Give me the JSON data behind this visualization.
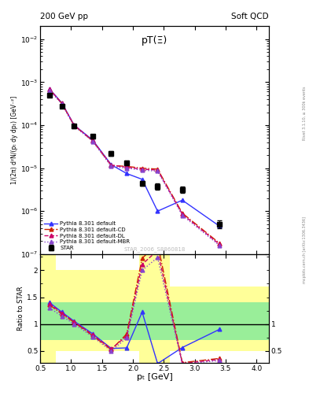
{
  "title_left": "200 GeV pp",
  "title_right": "Soft QCD",
  "annotation": "pT(Ξ)",
  "watermark": "STAR_2006_S8860818",
  "ylabel_main": "1/(2π) d²N/(pₜ dy dpₜ) [GeV⁻²]",
  "ylabel_ratio": "Ratio to STAR",
  "xlabel": "pₜ [GeV]",
  "right_label": "Rivet 3.1.10, ≥ 300k events",
  "right_label2": "mcplots.cern.ch [arXiv:1306.3436]",
  "star_pt": [
    0.65,
    0.85,
    1.05,
    1.35,
    1.65,
    1.9,
    2.15,
    2.4,
    2.8,
    3.4
  ],
  "star_y": [
    0.0005,
    0.00027,
    9.5e-05,
    5.5e-05,
    2.2e-05,
    1.35e-05,
    4.5e-06,
    3.8e-06,
    3.2e-06,
    5e-07
  ],
  "star_yerr": [
    5e-05,
    2e-05,
    1e-05,
    6e-06,
    3e-06,
    1.5e-06,
    6e-07,
    6e-07,
    5e-07,
    1e-07
  ],
  "py_default_pt": [
    0.65,
    0.85,
    1.05,
    1.35,
    1.65,
    1.9,
    2.15,
    2.4,
    2.8,
    3.4
  ],
  "py_default_y": [
    0.0007,
    0.00033,
    0.0001,
    4.5e-05,
    1.2e-05,
    7.5e-06,
    5.5e-06,
    1e-06,
    1.8e-06,
    4.5e-07
  ],
  "py_cd_pt": [
    0.65,
    0.85,
    1.05,
    1.35,
    1.65,
    1.9,
    2.15,
    2.4,
    2.8,
    3.4
  ],
  "py_cd_y": [
    0.00068,
    0.00032,
    9.8e-05,
    4.3e-05,
    1.15e-05,
    1.1e-05,
    1e-05,
    9.5e-06,
    9e-07,
    1.8e-07
  ],
  "py_dl_pt": [
    0.65,
    0.85,
    1.05,
    1.35,
    1.65,
    1.9,
    2.15,
    2.4,
    2.8,
    3.4
  ],
  "py_dl_y": [
    0.00069,
    0.000325,
    9.9e-05,
    4.4e-05,
    1.18e-05,
    1.05e-05,
    9.5e-06,
    9e-06,
    8.5e-07,
    1.7e-07
  ],
  "py_mbr_pt": [
    0.65,
    0.85,
    1.05,
    1.35,
    1.65,
    1.9,
    2.15,
    2.4,
    2.8,
    3.4
  ],
  "py_mbr_y": [
    0.00065,
    0.00031,
    9.5e-05,
    4.2e-05,
    1.1e-05,
    1e-05,
    9e-06,
    8.5e-06,
    8e-07,
    1.6e-07
  ],
  "color_star": "#000000",
  "color_default": "#3333ff",
  "color_cd": "#cc2200",
  "color_dl": "#cc0066",
  "color_mbr": "#8844cc",
  "legend_entries": [
    "STAR",
    "Pythia 8.301 default",
    "Pythia 8.301 default-CD",
    "Pythia 8.301 default-DL",
    "Pythia 8.301 default-MBR"
  ],
  "ylim_main": [
    1e-07,
    0.02
  ],
  "ylim_ratio": [
    0.28,
    2.3
  ],
  "xlim": [
    0.5,
    4.2
  ],
  "yellow_color": "#ffff99",
  "green_color": "#99ee99"
}
